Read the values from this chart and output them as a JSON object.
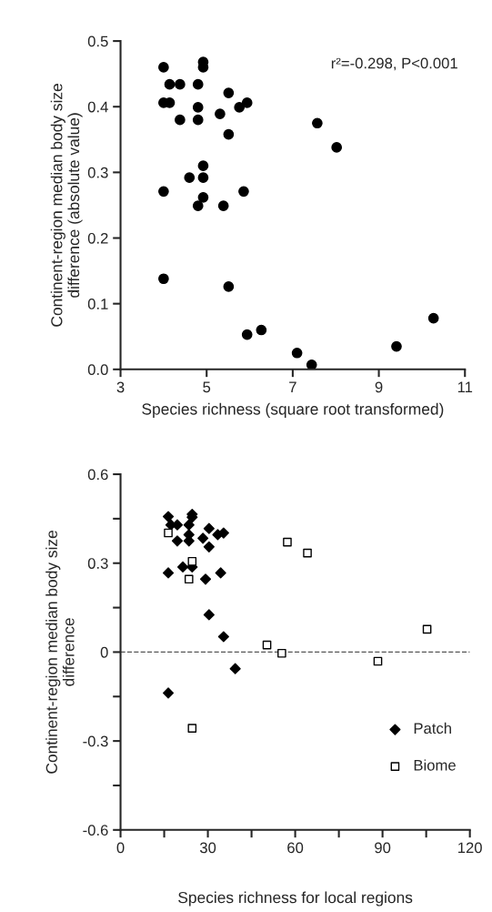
{
  "chart_data": [
    {
      "type": "scatter",
      "xlabel": "Species richness (square root transformed)",
      "ylabel": "Continent-region median body size\ndifference (absolute value)",
      "annotations": [
        "r²=-0.298, P<0.001"
      ],
      "xlim": [
        3,
        11
      ],
      "xticks": [
        3,
        5,
        7,
        9,
        11
      ],
      "ylim": [
        0,
        0.5
      ],
      "yticks": [
        {
          "value": 0,
          "label": "0.0"
        },
        0.1,
        0.2,
        0.3,
        0.4,
        0.5
      ],
      "grid": false,
      "legend": false,
      "marker": "circle",
      "series": [
        {
          "color": "#000000",
          "x": [
            4.0,
            4.92,
            4.92,
            4.14,
            4.38,
            4.8,
            5.51,
            4.0,
            4.14,
            4.8,
            5.31,
            5.76,
            5.94,
            4.38,
            4.8,
            5.51,
            7.57,
            8.02,
            4.92,
            4.6,
            4.92,
            4.0,
            5.86,
            4.92,
            4.8,
            5.39,
            4.0,
            5.51,
            5.94,
            6.27,
            7.1,
            7.44,
            9.41,
            10.27
          ],
          "values": [
            0.46,
            0.468,
            0.46,
            0.434,
            0.434,
            0.434,
            0.421,
            0.406,
            0.406,
            0.399,
            0.389,
            0.399,
            0.406,
            0.38,
            0.38,
            0.358,
            0.375,
            0.338,
            0.31,
            0.292,
            0.292,
            0.271,
            0.271,
            0.262,
            0.249,
            0.249,
            0.138,
            0.126,
            0.053,
            0.06,
            0.025,
            0.007,
            0.035,
            0.078
          ]
        }
      ]
    },
    {
      "type": "scatter",
      "xlabel": "Species richness for local regions",
      "ylabel": "Continent-region median body size\ndifference",
      "xlim": [
        0,
        120
      ],
      "xticks": [
        0,
        {
          "value": 15,
          "label": null
        },
        30,
        {
          "value": 45,
          "label": null
        },
        60,
        {
          "value": 75,
          "label": null
        },
        90,
        {
          "value": 105,
          "label": null
        },
        120
      ],
      "ylim": [
        -0.6,
        0.6
      ],
      "yticks": [
        -0.6,
        {
          "value": -0.45,
          "label": null
        },
        -0.3,
        {
          "value": -0.15,
          "label": null
        },
        0,
        {
          "value": 0.15,
          "label": null
        },
        0.3,
        {
          "value": 0.45,
          "label": null
        },
        0.6
      ],
      "grid": false,
      "legend": "bottom right",
      "ref_lines": [
        {
          "axis": "y",
          "value": 0,
          "color": "#555555",
          "line_style": "dashed"
        }
      ],
      "series": [
        {
          "name": "Patch",
          "color": "#000000",
          "marker": "diamond",
          "x": [
            16.4,
            17.3,
            19.5,
            23.5,
            24.6,
            24.6,
            30.4,
            23.5,
            33.4,
            35.4,
            19.5,
            23.5,
            28.3,
            30.4,
            16.4,
            21.4,
            24.6,
            29.2,
            34.4,
            30.4,
            35.4,
            39.4,
            16.4
          ],
          "values": [
            0.457,
            0.429,
            0.429,
            0.429,
            0.465,
            0.455,
            0.417,
            0.396,
            0.396,
            0.402,
            0.375,
            0.375,
            0.384,
            0.355,
            0.267,
            0.287,
            0.287,
            0.246,
            0.267,
            0.126,
            0.052,
            -0.056,
            -0.138
          ]
        },
        {
          "name": "Biome",
          "color": "#ffffff",
          "marker": "square",
          "x": [
            16.4,
            24.6,
            23.5,
            57.3,
            64.2,
            50.3,
            55.4,
            88.4,
            105.3,
            24.6
          ],
          "values": [
            0.402,
            0.306,
            0.246,
            0.371,
            0.334,
            0.024,
            -0.004,
            -0.031,
            0.077,
            -0.257
          ]
        }
      ]
    }
  ]
}
